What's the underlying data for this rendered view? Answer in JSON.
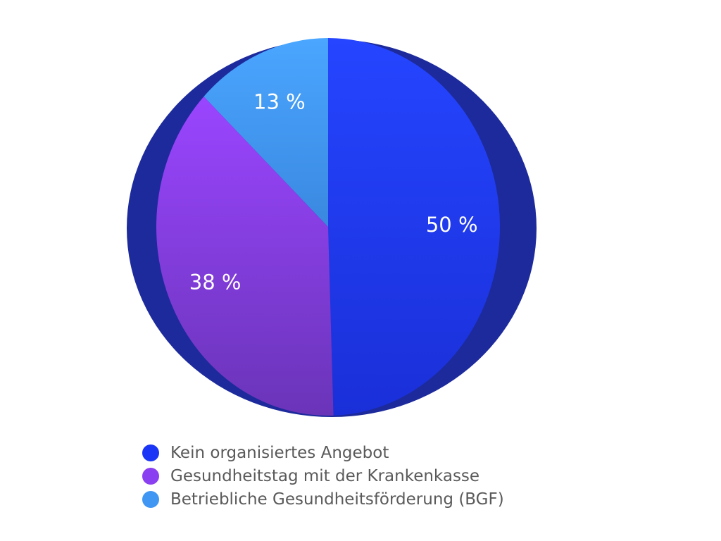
{
  "chart_data": {
    "type": "pie",
    "slices": [
      {
        "label": "Kein organisiertes Angebot",
        "value": 50,
        "display": "50 %",
        "color": "#1a35f5"
      },
      {
        "label": "Gesundheitstag mit der Krankenkasse",
        "value": 38,
        "display": "38 %",
        "color": "#8a3ff0"
      },
      {
        "label": "Betriebliche Gesundheitsförderung (BGF)",
        "value": 13,
        "display": "13 %",
        "color": "#3f96f3"
      }
    ],
    "legend_position": "bottom"
  }
}
